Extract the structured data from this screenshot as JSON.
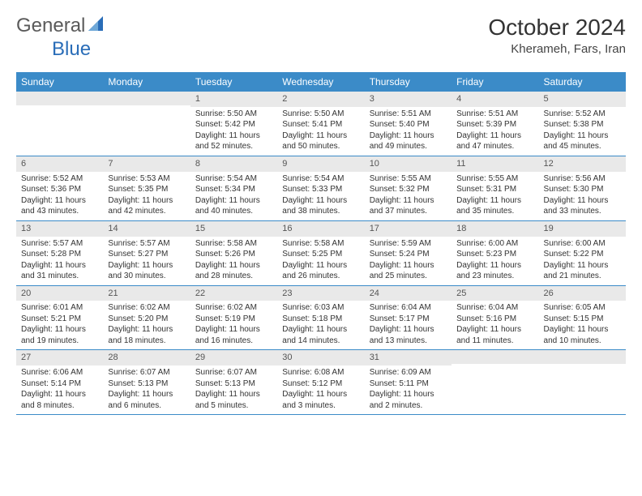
{
  "logo": {
    "text_a": "General",
    "text_b": "Blue",
    "text_a_color": "#5a5a5a",
    "text_b_color": "#2a6db8",
    "icon_color": "#2a6db8"
  },
  "title": "October 2024",
  "location": "Kherameh, Fars, Iran",
  "theme": {
    "header_bg": "#3b8bc8",
    "header_fg": "#ffffff",
    "daynum_bg": "#e9e9e9",
    "daynum_fg": "#555555",
    "body_fg": "#333333",
    "week_divider": "#3b8bc8",
    "title_fontsize": 28,
    "location_fontsize": 15,
    "dayheader_fontsize": 12,
    "cell_fontsize": 10
  },
  "day_labels": [
    "Sunday",
    "Monday",
    "Tuesday",
    "Wednesday",
    "Thursday",
    "Friday",
    "Saturday"
  ],
  "weeks": [
    [
      {
        "n": "",
        "lines": []
      },
      {
        "n": "",
        "lines": []
      },
      {
        "n": "1",
        "lines": [
          "Sunrise: 5:50 AM",
          "Sunset: 5:42 PM",
          "Daylight: 11 hours",
          "and 52 minutes."
        ]
      },
      {
        "n": "2",
        "lines": [
          "Sunrise: 5:50 AM",
          "Sunset: 5:41 PM",
          "Daylight: 11 hours",
          "and 50 minutes."
        ]
      },
      {
        "n": "3",
        "lines": [
          "Sunrise: 5:51 AM",
          "Sunset: 5:40 PM",
          "Daylight: 11 hours",
          "and 49 minutes."
        ]
      },
      {
        "n": "4",
        "lines": [
          "Sunrise: 5:51 AM",
          "Sunset: 5:39 PM",
          "Daylight: 11 hours",
          "and 47 minutes."
        ]
      },
      {
        "n": "5",
        "lines": [
          "Sunrise: 5:52 AM",
          "Sunset: 5:38 PM",
          "Daylight: 11 hours",
          "and 45 minutes."
        ]
      }
    ],
    [
      {
        "n": "6",
        "lines": [
          "Sunrise: 5:52 AM",
          "Sunset: 5:36 PM",
          "Daylight: 11 hours",
          "and 43 minutes."
        ]
      },
      {
        "n": "7",
        "lines": [
          "Sunrise: 5:53 AM",
          "Sunset: 5:35 PM",
          "Daylight: 11 hours",
          "and 42 minutes."
        ]
      },
      {
        "n": "8",
        "lines": [
          "Sunrise: 5:54 AM",
          "Sunset: 5:34 PM",
          "Daylight: 11 hours",
          "and 40 minutes."
        ]
      },
      {
        "n": "9",
        "lines": [
          "Sunrise: 5:54 AM",
          "Sunset: 5:33 PM",
          "Daylight: 11 hours",
          "and 38 minutes."
        ]
      },
      {
        "n": "10",
        "lines": [
          "Sunrise: 5:55 AM",
          "Sunset: 5:32 PM",
          "Daylight: 11 hours",
          "and 37 minutes."
        ]
      },
      {
        "n": "11",
        "lines": [
          "Sunrise: 5:55 AM",
          "Sunset: 5:31 PM",
          "Daylight: 11 hours",
          "and 35 minutes."
        ]
      },
      {
        "n": "12",
        "lines": [
          "Sunrise: 5:56 AM",
          "Sunset: 5:30 PM",
          "Daylight: 11 hours",
          "and 33 minutes."
        ]
      }
    ],
    [
      {
        "n": "13",
        "lines": [
          "Sunrise: 5:57 AM",
          "Sunset: 5:28 PM",
          "Daylight: 11 hours",
          "and 31 minutes."
        ]
      },
      {
        "n": "14",
        "lines": [
          "Sunrise: 5:57 AM",
          "Sunset: 5:27 PM",
          "Daylight: 11 hours",
          "and 30 minutes."
        ]
      },
      {
        "n": "15",
        "lines": [
          "Sunrise: 5:58 AM",
          "Sunset: 5:26 PM",
          "Daylight: 11 hours",
          "and 28 minutes."
        ]
      },
      {
        "n": "16",
        "lines": [
          "Sunrise: 5:58 AM",
          "Sunset: 5:25 PM",
          "Daylight: 11 hours",
          "and 26 minutes."
        ]
      },
      {
        "n": "17",
        "lines": [
          "Sunrise: 5:59 AM",
          "Sunset: 5:24 PM",
          "Daylight: 11 hours",
          "and 25 minutes."
        ]
      },
      {
        "n": "18",
        "lines": [
          "Sunrise: 6:00 AM",
          "Sunset: 5:23 PM",
          "Daylight: 11 hours",
          "and 23 minutes."
        ]
      },
      {
        "n": "19",
        "lines": [
          "Sunrise: 6:00 AM",
          "Sunset: 5:22 PM",
          "Daylight: 11 hours",
          "and 21 minutes."
        ]
      }
    ],
    [
      {
        "n": "20",
        "lines": [
          "Sunrise: 6:01 AM",
          "Sunset: 5:21 PM",
          "Daylight: 11 hours",
          "and 19 minutes."
        ]
      },
      {
        "n": "21",
        "lines": [
          "Sunrise: 6:02 AM",
          "Sunset: 5:20 PM",
          "Daylight: 11 hours",
          "and 18 minutes."
        ]
      },
      {
        "n": "22",
        "lines": [
          "Sunrise: 6:02 AM",
          "Sunset: 5:19 PM",
          "Daylight: 11 hours",
          "and 16 minutes."
        ]
      },
      {
        "n": "23",
        "lines": [
          "Sunrise: 6:03 AM",
          "Sunset: 5:18 PM",
          "Daylight: 11 hours",
          "and 14 minutes."
        ]
      },
      {
        "n": "24",
        "lines": [
          "Sunrise: 6:04 AM",
          "Sunset: 5:17 PM",
          "Daylight: 11 hours",
          "and 13 minutes."
        ]
      },
      {
        "n": "25",
        "lines": [
          "Sunrise: 6:04 AM",
          "Sunset: 5:16 PM",
          "Daylight: 11 hours",
          "and 11 minutes."
        ]
      },
      {
        "n": "26",
        "lines": [
          "Sunrise: 6:05 AM",
          "Sunset: 5:15 PM",
          "Daylight: 11 hours",
          "and 10 minutes."
        ]
      }
    ],
    [
      {
        "n": "27",
        "lines": [
          "Sunrise: 6:06 AM",
          "Sunset: 5:14 PM",
          "Daylight: 11 hours",
          "and 8 minutes."
        ]
      },
      {
        "n": "28",
        "lines": [
          "Sunrise: 6:07 AM",
          "Sunset: 5:13 PM",
          "Daylight: 11 hours",
          "and 6 minutes."
        ]
      },
      {
        "n": "29",
        "lines": [
          "Sunrise: 6:07 AM",
          "Sunset: 5:13 PM",
          "Daylight: 11 hours",
          "and 5 minutes."
        ]
      },
      {
        "n": "30",
        "lines": [
          "Sunrise: 6:08 AM",
          "Sunset: 5:12 PM",
          "Daylight: 11 hours",
          "and 3 minutes."
        ]
      },
      {
        "n": "31",
        "lines": [
          "Sunrise: 6:09 AM",
          "Sunset: 5:11 PM",
          "Daylight: 11 hours",
          "and 2 minutes."
        ]
      },
      {
        "n": "",
        "lines": []
      },
      {
        "n": "",
        "lines": []
      }
    ]
  ]
}
